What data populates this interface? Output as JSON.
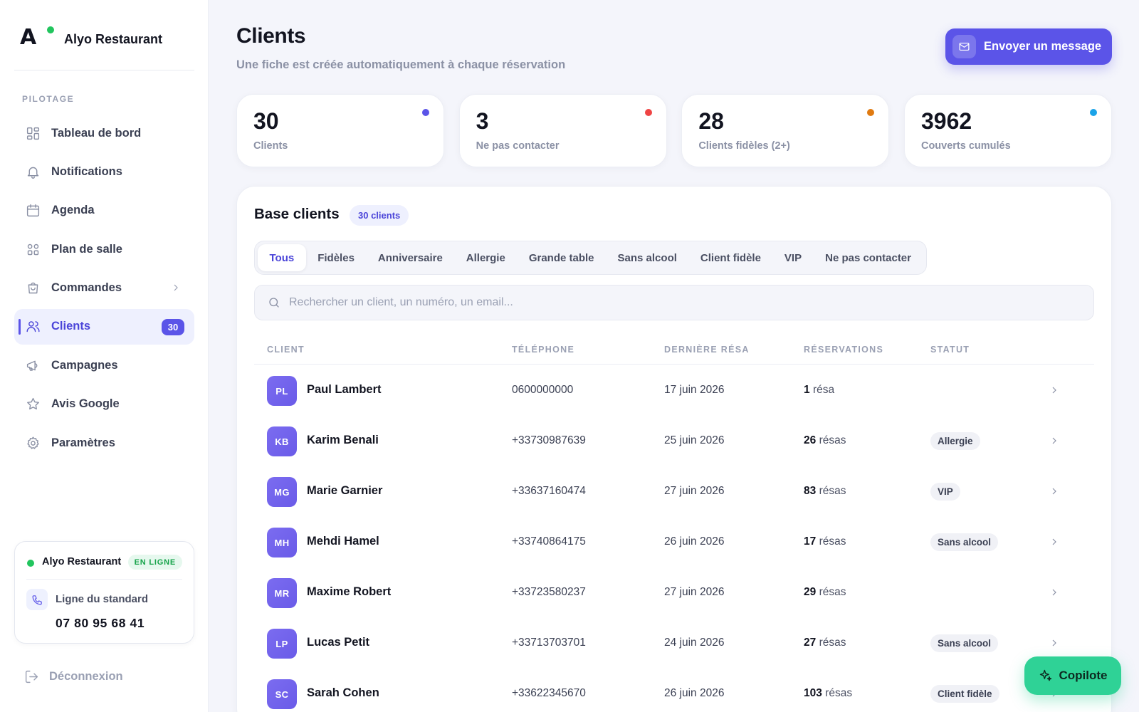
{
  "brand": {
    "logo_letter": "A",
    "name": "Alyo Restaurant"
  },
  "sidebar": {
    "section_label": "PILOTAGE",
    "items": [
      {
        "label": "Tableau de bord",
        "icon": "dashboard-icon"
      },
      {
        "label": "Notifications",
        "icon": "bell-icon"
      },
      {
        "label": "Agenda",
        "icon": "calendar-icon"
      },
      {
        "label": "Plan de salle",
        "icon": "floor-plan-icon"
      },
      {
        "label": "Commandes",
        "icon": "shopping-bag-icon",
        "has_chevron": true
      },
      {
        "label": "Clients",
        "icon": "users-icon",
        "active": true,
        "badge": "30"
      },
      {
        "label": "Campagnes",
        "icon": "megaphone-icon"
      },
      {
        "label": "Avis Google",
        "icon": "star-icon"
      },
      {
        "label": "Paramètres",
        "icon": "gear-icon"
      }
    ],
    "status_card": {
      "name": "Alyo Restaurant",
      "badge": "EN LIGNE",
      "line_label": "Ligne du standard",
      "number": "07 80 95 68 41"
    },
    "logout_label": "Déconnexion"
  },
  "header": {
    "title": "Clients",
    "subtitle": "Une fiche est créée automatiquement à chaque réservation",
    "send_button": "Envoyer un message"
  },
  "stats": [
    {
      "value": "30",
      "label": "Clients",
      "color": "#5b54e8"
    },
    {
      "value": "3",
      "label": "Ne pas contacter",
      "color": "#ef4444"
    },
    {
      "value": "28",
      "label": "Clients fidèles (2+)",
      "color": "#e07a10"
    },
    {
      "value": "3962",
      "label": "Couverts cumulés",
      "color": "#1aa3e8"
    }
  ],
  "panel": {
    "title": "Base clients",
    "count_badge": "30 clients",
    "filters": [
      "Tous",
      "Fidèles",
      "Anniversaire",
      "Allergie",
      "Grande table",
      "Sans alcool",
      "Client fidèle",
      "VIP",
      "Ne pas contacter"
    ],
    "active_filter": "Tous",
    "search_placeholder": "Rechercher un client, un numéro, un email...",
    "columns": [
      "CLIENT",
      "TÉLÉPHONE",
      "DERNIÈRE RÉSA",
      "RÉSERVATIONS",
      "STATUT"
    ],
    "rows": [
      {
        "initials": "PL",
        "name": "Paul Lambert",
        "phone": "0600000000",
        "last": "17 juin 2026",
        "count": "1",
        "unit": "résa",
        "status": ""
      },
      {
        "initials": "KB",
        "name": "Karim Benali",
        "phone": "+33730987639",
        "last": "25 juin 2026",
        "count": "26",
        "unit": "résas",
        "status": "Allergie"
      },
      {
        "initials": "MG",
        "name": "Marie Garnier",
        "phone": "+33637160474",
        "last": "27 juin 2026",
        "count": "83",
        "unit": "résas",
        "status": "VIP"
      },
      {
        "initials": "MH",
        "name": "Mehdi Hamel",
        "phone": "+33740864175",
        "last": "26 juin 2026",
        "count": "17",
        "unit": "résas",
        "status": "Sans alcool"
      },
      {
        "initials": "MR",
        "name": "Maxime Robert",
        "phone": "+33723580237",
        "last": "27 juin 2026",
        "count": "29",
        "unit": "résas",
        "status": ""
      },
      {
        "initials": "LP",
        "name": "Lucas Petit",
        "phone": "+33713703701",
        "last": "24 juin 2026",
        "count": "27",
        "unit": "résas",
        "status": "Sans alcool"
      },
      {
        "initials": "SC",
        "name": "Sarah Cohen",
        "phone": "+33622345670",
        "last": "26 juin 2026",
        "count": "103",
        "unit": "résas",
        "status": "Client fidèle"
      }
    ]
  },
  "copilot_label": "Copilote"
}
